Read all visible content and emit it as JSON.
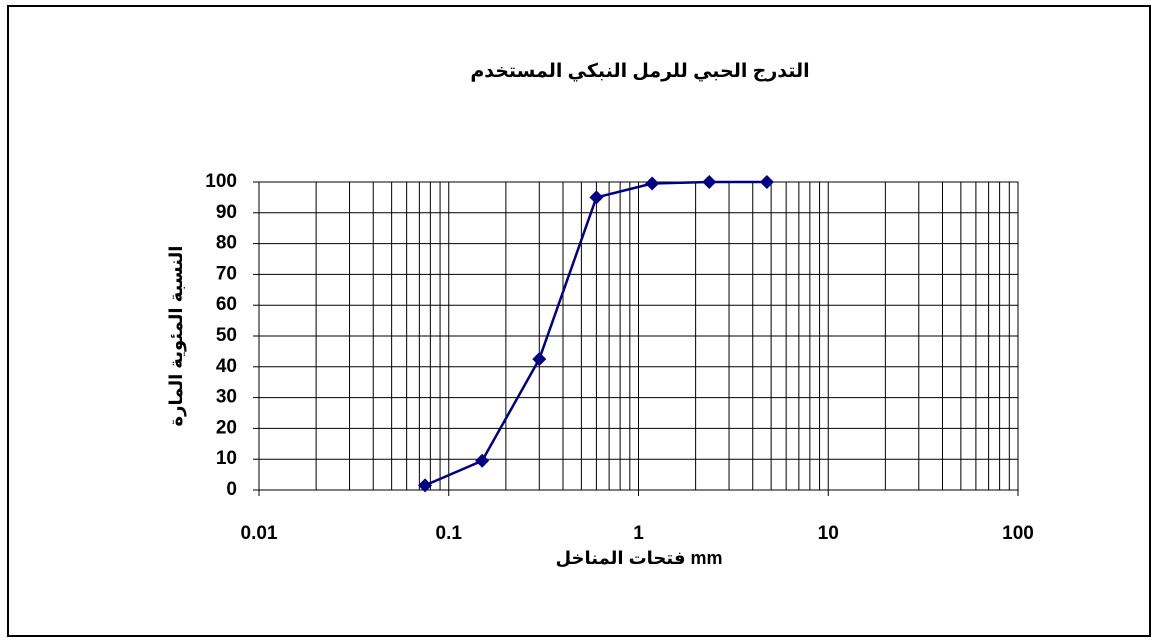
{
  "chart_data": {
    "type": "line",
    "title": "التدرج  الحبي للرمل النبكي المستخدم",
    "xlabel": "فتحات المناخل mm",
    "ylabel": "النسبة المئوية المارة",
    "xscale": "log",
    "grid": true,
    "x": [
      0.075,
      0.15,
      0.3,
      0.6,
      1.18,
      2.36,
      4.75
    ],
    "series": [
      {
        "name": null,
        "color": "#000080",
        "values": [
          1.5,
          9.5,
          42.5,
          95,
          99.5,
          100,
          100
        ]
      }
    ],
    "xlim": [
      0.01,
      100
    ],
    "xticks": [
      0.01,
      0.1,
      1,
      10,
      100
    ],
    "xminorticks": [
      0.02,
      0.03,
      0.04,
      0.05,
      0.06,
      0.07,
      0.08,
      0.09,
      0.2,
      0.3,
      0.4,
      0.5,
      0.6,
      0.7,
      0.8,
      0.9,
      2,
      3,
      4,
      5,
      6,
      7,
      8,
      9,
      20,
      30,
      40,
      50,
      60,
      70,
      80,
      90
    ],
    "ylim": [
      0,
      100
    ],
    "yticks": [
      0,
      10,
      20,
      30,
      40,
      50,
      60,
      70,
      80,
      90,
      100
    ]
  }
}
